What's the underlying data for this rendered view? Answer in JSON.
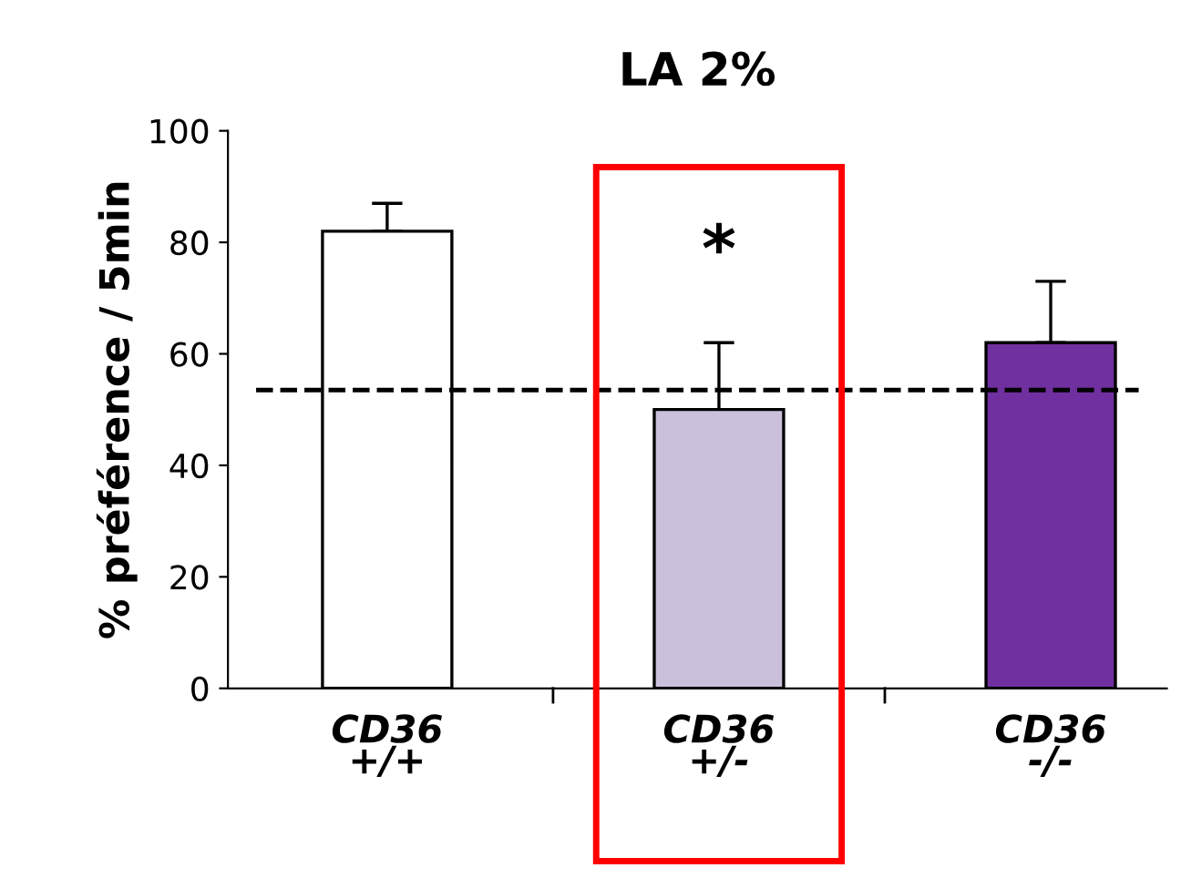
{
  "chart_data": {
    "type": "bar",
    "title": "LA 2%",
    "ylabel": "% préférence / 5min",
    "categories": [
      "CD36\n+/+",
      "CD36\n+/-",
      "CD36\n-/-"
    ],
    "values": [
      82,
      50,
      62
    ],
    "colors": [
      "#ffffff",
      "#cbc0dc",
      "#7030a0"
    ],
    "errors": [
      [
        82,
        87
      ],
      [
        50,
        62
      ],
      [
        62,
        73
      ]
    ],
    "ylim": [
      0,
      100
    ],
    "yticks": [
      0,
      20,
      40,
      60,
      80,
      100
    ],
    "grid": false,
    "legend": false,
    "ref_lines": [
      {
        "axis": "y",
        "value": 53.5,
        "color": "#000000",
        "line_style": "dashed"
      }
    ],
    "annotations": [
      "*"
    ]
  }
}
